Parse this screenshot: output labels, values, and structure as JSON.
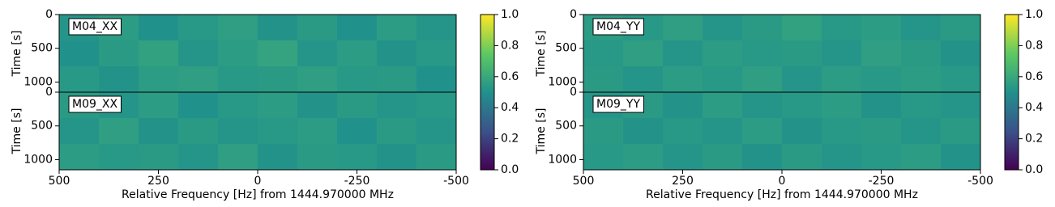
{
  "chart_data": [
    {
      "type": "heatmap",
      "xlabel": "Relative Frequency [Hz] from 1444.970000 MHz",
      "ylabel": "Time [s]",
      "xlim": [
        500,
        -500
      ],
      "xticks": [
        500,
        250,
        0,
        -250,
        -500
      ],
      "ylim": [
        1150,
        0
      ],
      "yticks": [
        0,
        500,
        1000
      ],
      "clim": [
        0,
        1
      ],
      "cticks": [
        {
          "value": 0,
          "label": "0.0"
        },
        0.2,
        0.4,
        0.6,
        0.8,
        {
          "value": 1,
          "label": "1.0"
        }
      ],
      "colorscale": [
        "#440154",
        "#3b528b",
        "#21918c",
        "#5ec962",
        "#fde725"
      ],
      "panels": [
        {
          "label": "M04_XX",
          "values": [
            [
              0.52,
              0.55,
              0.5,
              0.53,
              0.56,
              0.51,
              0.54,
              0.5,
              0.55,
              0.52
            ],
            [
              0.5,
              0.54,
              0.57,
              0.52,
              0.55,
              0.58,
              0.52,
              0.55,
              0.51,
              0.53
            ],
            [
              0.53,
              0.51,
              0.55,
              0.56,
              0.53,
              0.54,
              0.56,
              0.53,
              0.54,
              0.5
            ]
          ]
        },
        {
          "label": "M09_XX",
          "values": [
            [
              0.54,
              0.52,
              0.55,
              0.5,
              0.53,
              0.55,
              0.51,
              0.54,
              0.52,
              0.53
            ],
            [
              0.52,
              0.56,
              0.51,
              0.54,
              0.52,
              0.53,
              0.55,
              0.5,
              0.54,
              0.52
            ],
            [
              0.55,
              0.53,
              0.54,
              0.52,
              0.56,
              0.51,
              0.54,
              0.53,
              0.51,
              0.54
            ]
          ]
        }
      ]
    },
    {
      "type": "heatmap",
      "xlabel": "Relative Frequency [Hz] from 1444.970000 MHz",
      "ylabel": "Time [s]",
      "xlim": [
        500,
        -500
      ],
      "xticks": [
        500,
        250,
        0,
        -250,
        -500
      ],
      "ylim": [
        1150,
        0
      ],
      "yticks": [
        0,
        500,
        1000
      ],
      "clim": [
        0,
        1
      ],
      "cticks": [
        {
          "value": 0,
          "label": "0.0"
        },
        0.2,
        0.4,
        0.6,
        0.8,
        {
          "value": 1,
          "label": "1.0"
        }
      ],
      "colorscale": [
        "#440154",
        "#3b528b",
        "#21918c",
        "#5ec962",
        "#fde725"
      ],
      "panels": [
        {
          "label": "M04_YY",
          "values": [
            [
              0.55,
              0.53,
              0.56,
              0.52,
              0.54,
              0.57,
              0.53,
              0.55,
              0.52,
              0.54
            ],
            [
              0.53,
              0.56,
              0.52,
              0.55,
              0.53,
              0.54,
              0.52,
              0.56,
              0.54,
              0.51
            ],
            [
              0.54,
              0.52,
              0.55,
              0.53,
              0.56,
              0.52,
              0.55,
              0.53,
              0.55,
              0.53
            ]
          ]
        },
        {
          "label": "M09_YY",
          "values": [
            [
              0.52,
              0.54,
              0.51,
              0.55,
              0.52,
              0.53,
              0.55,
              0.51,
              0.53,
              0.52
            ],
            [
              0.54,
              0.51,
              0.53,
              0.52,
              0.55,
              0.51,
              0.53,
              0.54,
              0.52,
              0.54
            ],
            [
              0.53,
              0.55,
              0.52,
              0.54,
              0.51,
              0.54,
              0.52,
              0.53,
              0.55,
              0.51
            ]
          ]
        }
      ]
    }
  ]
}
